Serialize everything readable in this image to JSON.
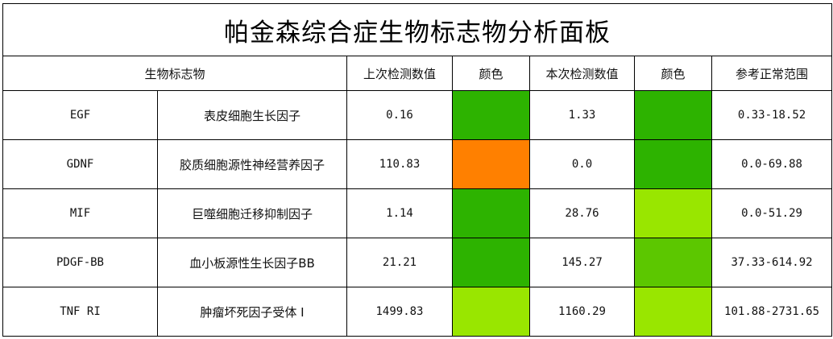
{
  "title": "帕金森综合症生物标志物分析面板",
  "headers": {
    "biomarker": "生物标志物",
    "last_value": "上次检测数值",
    "last_color": "颜色",
    "current_value": "本次检测数值",
    "current_color": "颜色",
    "reference": "参考正常范围"
  },
  "rows": [
    {
      "code": "EGF",
      "name": "表皮细胞生长因子",
      "last": "0.16",
      "last_color": "#2db300",
      "current": "1.33",
      "current_color": "#2db300",
      "range": "0.33-18.52"
    },
    {
      "code": "GDNF",
      "name": "胶质细胞源性神经营养因子",
      "last": "110.83",
      "last_color": "#ff8000",
      "current": "0.0",
      "current_color": "#2db300",
      "range": "0.0-69.88"
    },
    {
      "code": "MIF",
      "name": "巨噬细胞迁移抑制因子",
      "last": "1.14",
      "last_color": "#2db300",
      "current": "28.76",
      "current_color": "#99e600",
      "range": "0.0-51.29"
    },
    {
      "code": "PDGF-BB",
      "name": "血小板源性生长因子BB",
      "last": "21.21",
      "last_color": "#2db300",
      "current": "145.27",
      "current_color": "#5cc700",
      "range": "37.33-614.92"
    },
    {
      "code": "TNF RI",
      "name": "肿瘤坏死因子受体 I",
      "last": "1499.83",
      "last_color": "#99e600",
      "current": "1160.29",
      "current_color": "#99e600",
      "range": "101.88-2731.65"
    }
  ]
}
